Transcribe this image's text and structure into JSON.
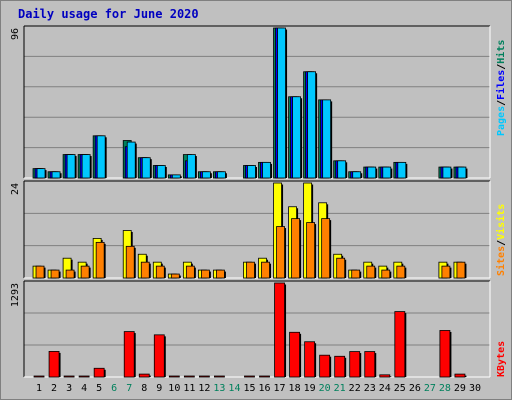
{
  "title": "Daily usage for June 2020",
  "colors": {
    "hits": "#00805c",
    "files": "#0000ff",
    "pages": "#00c8ff",
    "visits": "#ffff00",
    "sites": "#ff8000",
    "kbytes": "#ff0000",
    "weekday_tick": "#000000",
    "weekend_tick": "#00805c",
    "title": "#0000c0"
  },
  "chart_data": [
    {
      "type": "bar",
      "panel": "hits-files-pages",
      "ymax_label": "96",
      "ylim": [
        0,
        96
      ],
      "legend": {
        "hits": "Hits",
        "files": "Files",
        "pages": "Pages",
        "sep": "/"
      },
      "x": [
        1,
        2,
        3,
        4,
        5,
        6,
        7,
        8,
        9,
        10,
        11,
        12,
        13,
        14,
        15,
        16,
        17,
        18,
        19,
        20,
        21,
        22,
        23,
        24,
        25,
        26,
        27,
        28,
        29,
        30
      ],
      "series": [
        {
          "name": "Hits",
          "values": [
            6,
            4,
            15,
            15,
            27,
            0,
            24,
            13,
            8,
            2,
            15,
            4,
            4,
            0,
            8,
            10,
            96,
            52,
            68,
            50,
            11,
            4,
            7,
            7,
            10,
            0,
            0,
            7,
            7,
            0
          ]
        },
        {
          "name": "Files",
          "values": [
            6,
            4,
            15,
            15,
            27,
            0,
            20,
            13,
            8,
            2,
            11,
            4,
            4,
            0,
            8,
            10,
            96,
            52,
            68,
            50,
            11,
            4,
            7,
            7,
            10,
            0,
            0,
            7,
            7,
            0
          ]
        },
        {
          "name": "Pages",
          "values": [
            6,
            4,
            15,
            15,
            27,
            0,
            23,
            13,
            8,
            2,
            15,
            4,
            4,
            0,
            8,
            10,
            96,
            52,
            68,
            50,
            11,
            4,
            7,
            7,
            10,
            0,
            0,
            7,
            7,
            0
          ]
        }
      ]
    },
    {
      "type": "bar",
      "panel": "sites-visits",
      "ymax_label": "24",
      "ylim": [
        0,
        24
      ],
      "legend": {
        "sites": "Sites",
        "visits": "Visits",
        "sep": "/"
      },
      "x": [
        1,
        2,
        3,
        4,
        5,
        6,
        7,
        8,
        9,
        10,
        11,
        12,
        13,
        14,
        15,
        16,
        17,
        18,
        19,
        20,
        21,
        22,
        23,
        24,
        25,
        26,
        27,
        28,
        29,
        30
      ],
      "series": [
        {
          "name": "Visits",
          "values": [
            3,
            2,
            5,
            4,
            10,
            0,
            12,
            6,
            4,
            1,
            4,
            2,
            2,
            0,
            4,
            5,
            24,
            18,
            24,
            19,
            6,
            2,
            4,
            3,
            4,
            0,
            0,
            4,
            4,
            0
          ]
        },
        {
          "name": "Sites",
          "values": [
            3,
            2,
            2,
            3,
            9,
            0,
            8,
            4,
            3,
            1,
            3,
            2,
            2,
            0,
            4,
            4,
            13,
            15,
            14,
            15,
            5,
            2,
            3,
            2,
            3,
            0,
            0,
            3,
            4,
            0
          ]
        }
      ]
    },
    {
      "type": "bar",
      "panel": "kbytes",
      "ymax_label": "1293",
      "ylim": [
        0,
        1293
      ],
      "legend": {
        "kbytes": "KBytes"
      },
      "x": [
        1,
        2,
        3,
        4,
        5,
        6,
        7,
        8,
        9,
        10,
        11,
        12,
        13,
        14,
        15,
        16,
        17,
        18,
        19,
        20,
        21,
        22,
        23,
        24,
        25,
        26,
        27,
        28,
        29,
        30
      ],
      "series": [
        {
          "name": "KBytes",
          "values": [
            5,
            352,
            5,
            5,
            120,
            0,
            625,
            40,
            580,
            5,
            5,
            5,
            5,
            0,
            5,
            5,
            1293,
            615,
            485,
            300,
            285,
            350,
            350,
            30,
            900,
            0,
            0,
            640,
            40,
            0
          ]
        }
      ]
    }
  ],
  "x_tick_labels": [
    "1",
    "2",
    "3",
    "4",
    "5",
    "6",
    "7",
    "8",
    "9",
    "10",
    "11",
    "12",
    "13",
    "14",
    "15",
    "16",
    "17",
    "18",
    "19",
    "20",
    "21",
    "22",
    "23",
    "24",
    "25",
    "26",
    "27",
    "28",
    "29",
    "30"
  ],
  "weekend_days": [
    6,
    7,
    13,
    14,
    20,
    21,
    27,
    28
  ]
}
